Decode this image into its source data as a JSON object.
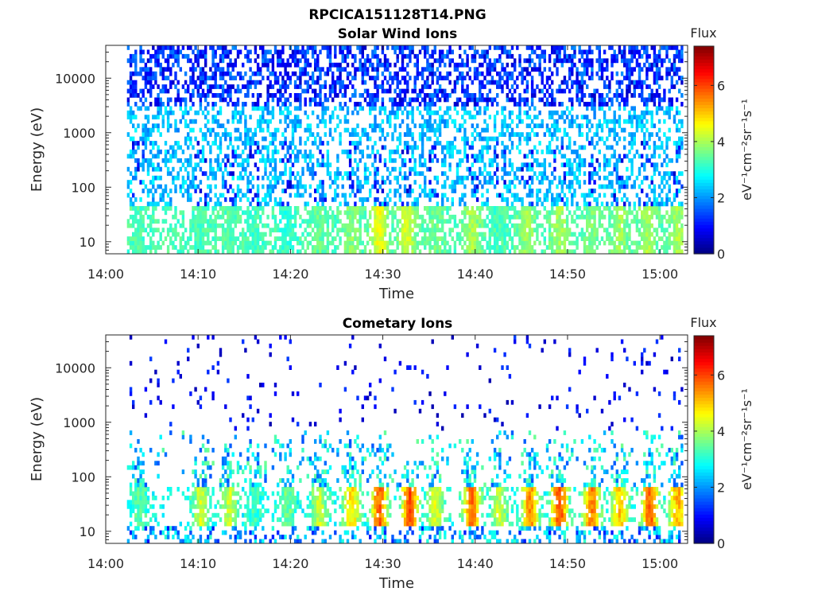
{
  "figure": {
    "title": "RPCICA151128T14.PNG"
  },
  "colors": {
    "axis": "#262626",
    "colormap": "jet"
  },
  "chart_data": [
    {
      "type": "heatmap",
      "title": "Solar Wind Ions",
      "xlabel": "Time",
      "ylabel": "Energy (eV)",
      "x_ticks": [
        "14:00",
        "14:10",
        "14:20",
        "14:30",
        "14:40",
        "14:50",
        "15:00"
      ],
      "x_range_minutes": [
        0,
        63
      ],
      "y_scale": "log",
      "y_ticks": [
        "10",
        "100",
        "1000",
        "10000"
      ],
      "y_range_eV": [
        6,
        40000
      ],
      "colorbar": {
        "label": "Flux",
        "unit": "eV⁻¹cm⁻²sr⁻¹s⁻¹",
        "ticks": [
          "0",
          "2",
          "4",
          "6"
        ],
        "range": [
          0,
          7.4
        ]
      },
      "data_start_minute": 2.3,
      "data_end_minute": 62.5,
      "pulse_minutes": [
        3.5,
        10.2,
        13.3,
        16.0,
        19.5,
        23.0,
        26.5,
        29.5,
        32.5,
        35.6,
        39.5,
        42.5,
        45.5,
        49.0,
        52.5,
        55.5,
        58.5,
        61.8
      ],
      "pulse_peak_flux": [
        3.6,
        3.6,
        3.7,
        3.5,
        3.4,
        3.8,
        4.1,
        4.8,
        4.6,
        3.9,
        4.3,
        3.6,
        4.2,
        4.3,
        4.0,
        4.2,
        4.3,
        4.3
      ],
      "low_energy_flux_range": [
        3.0,
        3.6
      ],
      "mid_energy_flux_range": [
        1.8,
        2.8
      ],
      "high_energy_flux_range": [
        0.5,
        2.0
      ]
    },
    {
      "type": "heatmap",
      "title": "Cometary Ions",
      "xlabel": "Time",
      "ylabel": "Energy (eV)",
      "x_ticks": [
        "14:00",
        "14:10",
        "14:20",
        "14:30",
        "14:40",
        "14:50",
        "15:00"
      ],
      "x_range_minutes": [
        0,
        63
      ],
      "y_scale": "log",
      "y_ticks": [
        "10",
        "100",
        "1000",
        "10000"
      ],
      "y_range_eV": [
        6,
        40000
      ],
      "colorbar": {
        "label": "Flux",
        "unit": "eV⁻¹cm⁻²sr⁻¹s⁻¹",
        "ticks": [
          "0",
          "2",
          "4",
          "6"
        ],
        "range": [
          0,
          7.4
        ]
      },
      "data_start_minute": 2.3,
      "data_end_minute": 62.5,
      "pulse_minutes": [
        3.5,
        10.2,
        13.3,
        16.0,
        19.5,
        23.0,
        26.5,
        29.5,
        32.8,
        35.6,
        39.5,
        42.5,
        45.8,
        49.0,
        52.5,
        55.5,
        58.8,
        61.8
      ],
      "pulse_peak_flux": [
        3.8,
        4.7,
        4.6,
        3.6,
        4.0,
        4.6,
        5.2,
        6.2,
        6.3,
        4.8,
        6.0,
        4.6,
        5.8,
        6.3,
        5.9,
        5.4,
        6.1,
        5.6
      ],
      "low_energy_flux_range": [
        1.0,
        3.2
      ],
      "mid_energy_flux_range": [
        1.5,
        3.6
      ],
      "high_energy_flux_range": [
        0.3,
        1.4
      ]
    }
  ]
}
